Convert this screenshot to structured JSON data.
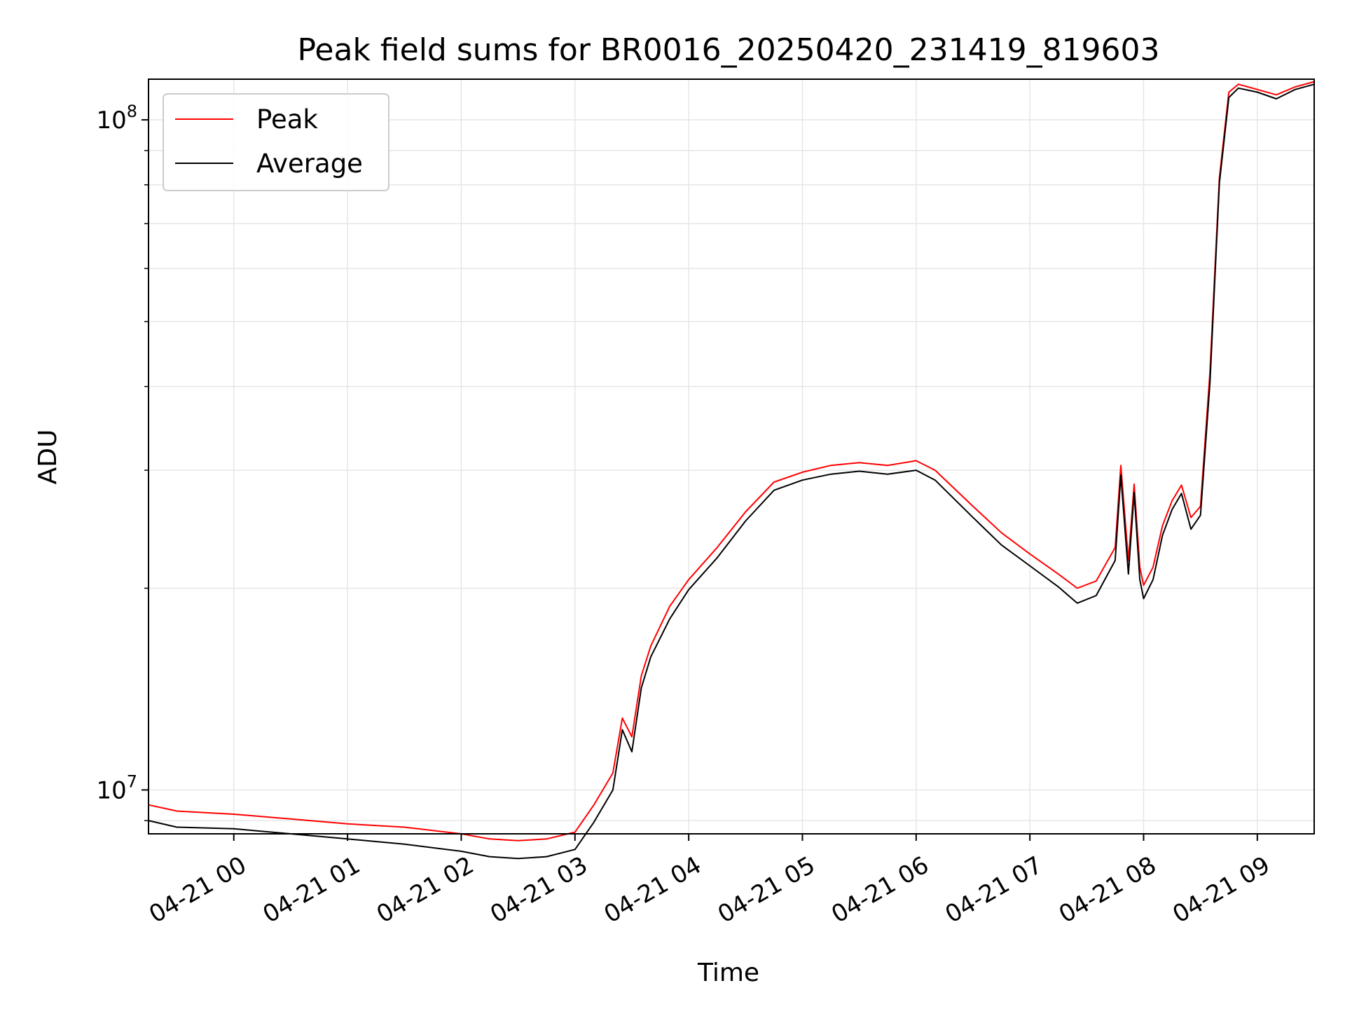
{
  "chart_data": {
    "type": "line",
    "title": "Peak field sums for BR0016_20250420_231419_819603",
    "xlabel": "Time",
    "ylabel": "ADU",
    "y_scale": "log",
    "xlim": [
      "2025-04-20 23:15",
      "2025-04-21 09:30"
    ],
    "ylim": [
      8600000,
      115000000
    ],
    "x_ticks": [
      "04-21 00",
      "04-21 01",
      "04-21 02",
      "04-21 03",
      "04-21 04",
      "04-21 05",
      "04-21 06",
      "04-21 07",
      "04-21 08",
      "04-21 09"
    ],
    "y_ticks": [
      {
        "value": 10000000,
        "base": "10",
        "exp": "7"
      },
      {
        "value": 100000000,
        "base": "10",
        "exp": "8"
      }
    ],
    "grid": true,
    "legend_position": "top-left",
    "colors": {
      "peak": "#ff0000",
      "average": "#000000",
      "grid": "#e6e6e6"
    },
    "x": [
      "2025-04-20 23:15",
      "2025-04-20 23:30",
      "2025-04-21 00:00",
      "2025-04-21 00:30",
      "2025-04-21 01:00",
      "2025-04-21 01:30",
      "2025-04-21 02:00",
      "2025-04-21 02:15",
      "2025-04-21 02:30",
      "2025-04-21 02:45",
      "2025-04-21 03:00",
      "2025-04-21 03:10",
      "2025-04-21 03:20",
      "2025-04-21 03:25",
      "2025-04-21 03:30",
      "2025-04-21 03:35",
      "2025-04-21 03:40",
      "2025-04-21 03:50",
      "2025-04-21 04:00",
      "2025-04-21 04:15",
      "2025-04-21 04:30",
      "2025-04-21 04:45",
      "2025-04-21 05:00",
      "2025-04-21 05:15",
      "2025-04-21 05:30",
      "2025-04-21 05:45",
      "2025-04-21 06:00",
      "2025-04-21 06:10",
      "2025-04-21 06:30",
      "2025-04-21 06:45",
      "2025-04-21 07:00",
      "2025-04-21 07:15",
      "2025-04-21 07:25",
      "2025-04-21 07:35",
      "2025-04-21 07:45",
      "2025-04-21 07:48",
      "2025-04-21 07:52",
      "2025-04-21 07:55",
      "2025-04-21 07:58",
      "2025-04-21 08:00",
      "2025-04-21 08:05",
      "2025-04-21 08:10",
      "2025-04-21 08:15",
      "2025-04-21 08:20",
      "2025-04-21 08:25",
      "2025-04-21 08:30",
      "2025-04-21 08:35",
      "2025-04-21 08:40",
      "2025-04-21 08:45",
      "2025-04-21 08:50",
      "2025-04-21 09:00",
      "2025-04-21 09:10",
      "2025-04-21 09:20",
      "2025-04-21 09:30"
    ],
    "series": [
      {
        "name": "Peak",
        "values": [
          9500000,
          9300000,
          9200000,
          9050000,
          8900000,
          8800000,
          8600000,
          8450000,
          8400000,
          8450000,
          8650000,
          9500000,
          10600000,
          12800000,
          12000000,
          14800000,
          16400000,
          18800000,
          20600000,
          23000000,
          26000000,
          28800000,
          29800000,
          30500000,
          30800000,
          30500000,
          31000000,
          30000000,
          26500000,
          24200000,
          22500000,
          21000000,
          20000000,
          20500000,
          23000000,
          30500000,
          22000000,
          28600000,
          21500000,
          20200000,
          21500000,
          24800000,
          27000000,
          28500000,
          25500000,
          26500000,
          42000000,
          82000000,
          110000000,
          113000000,
          111000000,
          109000000,
          112000000,
          114000000
        ]
      },
      {
        "name": "Average",
        "values": [
          9000000,
          8800000,
          8750000,
          8600000,
          8450000,
          8300000,
          8100000,
          7950000,
          7900000,
          7950000,
          8150000,
          8950000,
          10000000,
          12300000,
          11400000,
          14200000,
          15800000,
          18000000,
          19900000,
          22200000,
          25200000,
          28000000,
          29000000,
          29600000,
          29900000,
          29600000,
          30000000,
          29000000,
          25500000,
          23200000,
          21600000,
          20100000,
          19000000,
          19500000,
          22000000,
          29500000,
          21000000,
          27800000,
          20600000,
          19300000,
          20600000,
          24000000,
          26200000,
          27700000,
          24500000,
          25700000,
          40500000,
          80500000,
          108000000,
          111500000,
          110000000,
          107500000,
          111000000,
          113000000
        ]
      }
    ]
  }
}
